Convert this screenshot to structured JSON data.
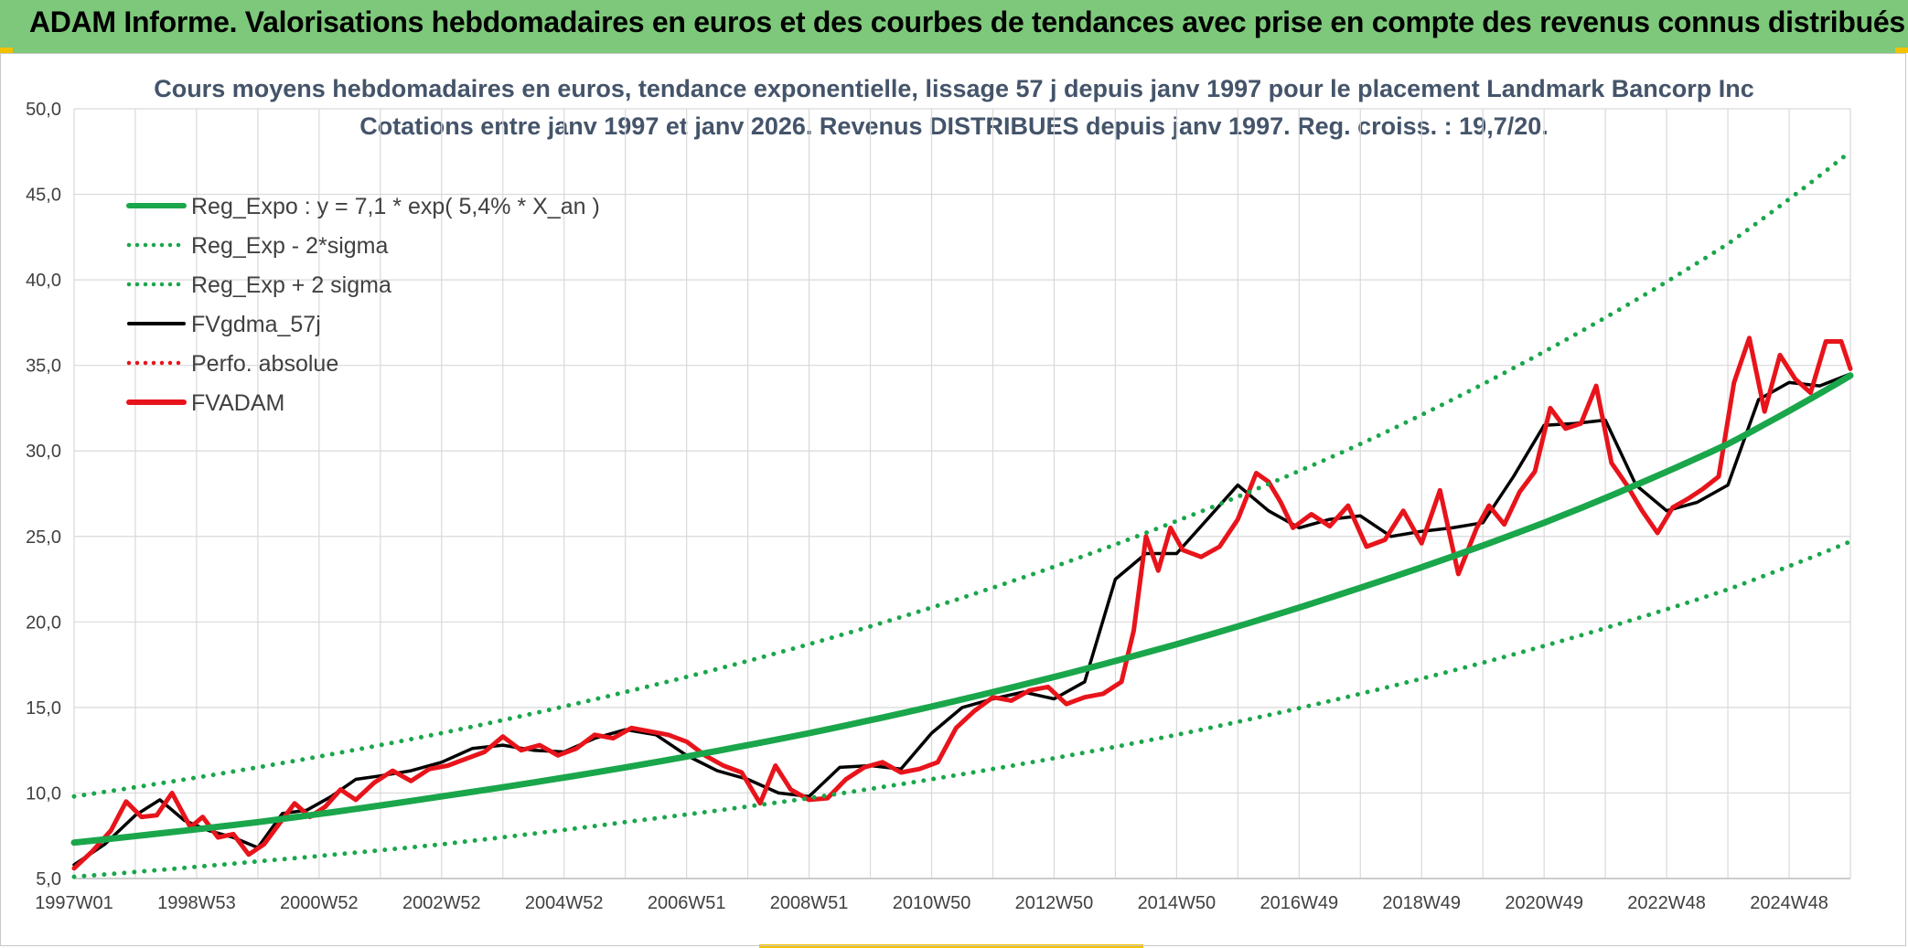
{
  "banner": {
    "title": "ADAM Informe. Valorisations hebdomadaires en euros et des courbes de tendances avec prise en compte des revenus connus distribués"
  },
  "colors": {
    "banner_bg": "#7dc87a",
    "trend": "#1aa64b",
    "smooth": "#000000",
    "price": "#e8141b",
    "grid": "#d9d9d9",
    "accent": "#f2c200"
  },
  "chart_data": {
    "type": "line",
    "title_line1": "Cours moyens hebdomadaires en euros, tendance exponentielle, lissage 57 j depuis janv 1997 pour le placement Landmark Bancorp Inc",
    "title_line2": "Cotations entre janv 1997 et janv 2026. Revenus DISTRIBUES depuis janv 1997. Reg. croiss. : 19,7/20.",
    "xlabel": "",
    "ylabel": "",
    "ylim": [
      5,
      50
    ],
    "xlim": [
      1997.0,
      2026.0
    ],
    "y_ticks": [
      "5,0",
      "10,0",
      "15,0",
      "20,0",
      "25,0",
      "30,0",
      "35,0",
      "40,0",
      "45,0",
      "50,0"
    ],
    "y_tick_values": [
      5,
      10,
      15,
      20,
      25,
      30,
      35,
      40,
      45,
      50
    ],
    "x_tick_labels": [
      "1997W01",
      "1998W53",
      "2000W52",
      "2002W52",
      "2004W52",
      "2006W51",
      "2008W51",
      "2010W50",
      "2012W50",
      "2014W50",
      "2016W49",
      "2018W49",
      "2020W49",
      "2022W48",
      "2024W48"
    ],
    "x_tick_values": [
      1997.0,
      1999.0,
      2001.0,
      2003.0,
      2005.0,
      2007.0,
      2009.0,
      2011.0,
      2013.0,
      2015.0,
      2017.0,
      2019.0,
      2021.0,
      2023.0,
      2025.0
    ],
    "grid": true,
    "legend_position": "top-left",
    "legend": [
      {
        "key": "reg_expo",
        "label": "Reg_Expo : y = 7,1 * exp( 5,4% *  X_an )",
        "color": "#1aa64b",
        "style": "solid-thick"
      },
      {
        "key": "reg_minus",
        "label": "Reg_Exp - 2*sigma",
        "color": "#1aa64b",
        "style": "dotted"
      },
      {
        "key": "reg_plus",
        "label": "Reg_Exp + 2 sigma",
        "color": "#1aa64b",
        "style": "dotted"
      },
      {
        "key": "fvgdma",
        "label": "FVgdma_57j",
        "color": "#000000",
        "style": "solid"
      },
      {
        "key": "perfo",
        "label": "Perfo. absolue",
        "color": "#e8141b",
        "style": "dotted"
      },
      {
        "key": "fvadam",
        "label": "FVADAM",
        "color": "#e8141b",
        "style": "solid-thick"
      }
    ],
    "series": [
      {
        "name": "Reg_Expo : y = 7,1 * exp( 5,4% *  X_an )",
        "x": [
          1997.0,
          2000.0,
          2003.0,
          2006.0,
          2009.0,
          2012.0,
          2015.0,
          2018.0,
          2021.0,
          2024.0,
          2026.0
        ],
        "values": [
          7.1,
          8.3,
          9.8,
          11.5,
          13.5,
          15.9,
          18.7,
          22.0,
          25.8,
          30.4,
          34.4
        ]
      },
      {
        "name": "Reg_Exp - 2*sigma",
        "x": [
          1997.0,
          2000.0,
          2003.0,
          2006.0,
          2009.0,
          2012.0,
          2015.0,
          2018.0,
          2021.0,
          2024.0,
          2026.0
        ],
        "values": [
          5.1,
          6.0,
          7.0,
          8.3,
          9.7,
          11.4,
          13.4,
          15.8,
          18.6,
          21.9,
          24.7
        ]
      },
      {
        "name": "Reg_Exp + 2 sigma",
        "x": [
          1997.0,
          2000.0,
          2003.0,
          2006.0,
          2009.0,
          2012.0,
          2015.0,
          2018.0,
          2021.0,
          2024.0,
          2026.0
        ],
        "values": [
          9.8,
          11.5,
          13.5,
          15.9,
          18.7,
          22.0,
          25.9,
          30.4,
          35.8,
          42.1,
          47.5
        ]
      },
      {
        "name": "FVgdma_57j",
        "x": [
          1997.0,
          1997.5,
          1998.0,
          1998.4,
          1998.8,
          1999.2,
          1999.6,
          2000.0,
          2000.4,
          2000.8,
          2001.2,
          2001.6,
          2002.0,
          2002.5,
          2003.0,
          2003.5,
          2004.0,
          2004.5,
          2005.0,
          2005.5,
          2006.0,
          2006.5,
          2007.0,
          2007.5,
          2008.0,
          2008.5,
          2009.0,
          2009.5,
          2010.0,
          2010.5,
          2011.0,
          2011.5,
          2012.0,
          2012.5,
          2013.0,
          2013.5,
          2014.0,
          2014.5,
          2015.0,
          2015.5,
          2016.0,
          2016.5,
          2017.0,
          2017.5,
          2018.0,
          2018.5,
          2019.0,
          2019.5,
          2020.0,
          2020.5,
          2021.0,
          2021.5,
          2022.0,
          2022.5,
          2023.0,
          2023.5,
          2024.0,
          2024.5,
          2025.0,
          2025.5,
          2026.0
        ],
        "values": [
          5.8,
          7.0,
          8.7,
          9.6,
          8.4,
          7.8,
          7.4,
          6.8,
          8.8,
          9.0,
          9.8,
          10.8,
          11.0,
          11.3,
          11.8,
          12.6,
          12.8,
          12.5,
          12.4,
          13.2,
          13.7,
          13.4,
          12.2,
          11.3,
          10.8,
          10.0,
          9.8,
          11.5,
          11.6,
          11.4,
          13.5,
          15.0,
          15.5,
          15.9,
          15.5,
          16.5,
          22.5,
          24.0,
          24.0,
          26.0,
          28.0,
          26.5,
          25.5,
          26.0,
          26.2,
          25.0,
          25.3,
          25.5,
          25.8,
          28.5,
          31.5,
          31.6,
          31.8,
          28.0,
          26.5,
          27.0,
          28.0,
          33.0,
          34.0,
          33.8,
          34.5
        ]
      },
      {
        "name": "FVADAM",
        "x": [
          1997.0,
          1997.3,
          1997.6,
          1997.85,
          1998.1,
          1998.35,
          1998.6,
          1998.9,
          1999.1,
          1999.35,
          1999.6,
          1999.85,
          2000.1,
          2000.35,
          2000.6,
          2000.85,
          2001.1,
          2001.35,
          2001.6,
          2001.9,
          2002.2,
          2002.5,
          2002.8,
          2003.1,
          2003.4,
          2003.7,
          2004.0,
          2004.3,
          2004.6,
          2004.9,
          2005.2,
          2005.5,
          2005.8,
          2006.1,
          2006.4,
          2006.7,
          2007.0,
          2007.3,
          2007.6,
          2007.9,
          2008.2,
          2008.45,
          2008.7,
          2009.0,
          2009.3,
          2009.6,
          2009.9,
          2010.2,
          2010.5,
          2010.8,
          2011.1,
          2011.4,
          2011.7,
          2012.0,
          2012.3,
          2012.6,
          2012.9,
          2013.2,
          2013.5,
          2013.8,
          2014.1,
          2014.3,
          2014.5,
          2014.7,
          2014.9,
          2015.1,
          2015.4,
          2015.7,
          2016.0,
          2016.3,
          2016.5,
          2016.7,
          2016.9,
          2017.2,
          2017.5,
          2017.8,
          2018.1,
          2018.4,
          2018.7,
          2019.0,
          2019.3,
          2019.6,
          2019.9,
          2020.1,
          2020.35,
          2020.6,
          2020.85,
          2021.1,
          2021.35,
          2021.6,
          2021.85,
          2022.1,
          2022.35,
          2022.6,
          2022.85,
          2023.1,
          2023.35,
          2023.6,
          2023.85,
          2024.1,
          2024.35,
          2024.6,
          2024.85,
          2025.1,
          2025.35,
          2025.6,
          2025.85,
          2026.0
        ],
        "values": [
          5.6,
          6.6,
          7.8,
          9.5,
          8.6,
          8.7,
          10.0,
          8.0,
          8.6,
          7.4,
          7.6,
          6.4,
          7.0,
          8.2,
          9.4,
          8.6,
          9.2,
          10.2,
          9.6,
          10.6,
          11.3,
          10.7,
          11.4,
          11.6,
          12.0,
          12.4,
          13.3,
          12.5,
          12.8,
          12.2,
          12.6,
          13.4,
          13.2,
          13.8,
          13.6,
          13.4,
          13.0,
          12.2,
          11.6,
          11.2,
          9.4,
          11.6,
          10.2,
          9.6,
          9.7,
          10.8,
          11.5,
          11.8,
          11.2,
          11.4,
          11.8,
          13.8,
          14.8,
          15.6,
          15.4,
          16.0,
          16.2,
          15.2,
          15.6,
          15.8,
          16.5,
          19.5,
          25.0,
          23.0,
          25.5,
          24.2,
          23.8,
          24.4,
          26.0,
          28.7,
          28.2,
          27.0,
          25.5,
          26.3,
          25.6,
          26.8,
          24.4,
          24.8,
          26.5,
          24.6,
          27.7,
          22.8,
          25.5,
          26.8,
          25.7,
          27.6,
          28.8,
          32.5,
          31.3,
          31.6,
          33.8,
          29.3,
          28.0,
          26.5,
          25.2,
          26.7,
          27.2,
          27.8,
          28.5,
          34.0,
          36.6,
          32.3,
          35.6,
          34.2,
          33.4,
          36.4,
          36.4,
          34.8
        ]
      }
    ]
  }
}
